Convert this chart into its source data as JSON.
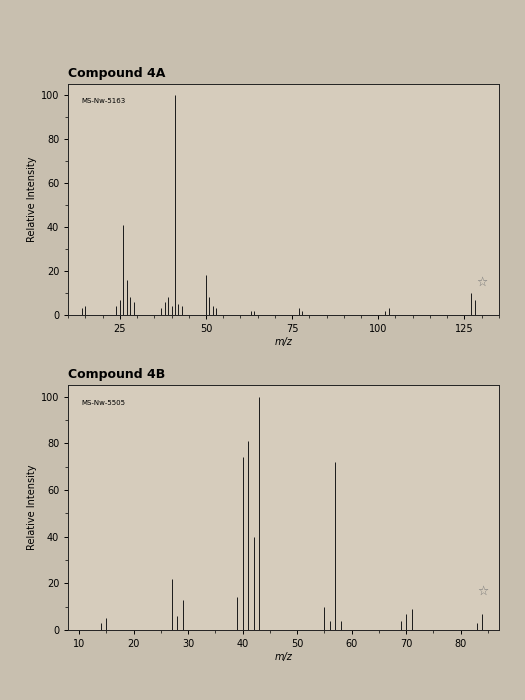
{
  "compound_4A": {
    "label": "MS-Nw-5163",
    "peaks": [
      [
        14,
        3
      ],
      [
        15,
        4
      ],
      [
        24,
        4
      ],
      [
        25,
        7
      ],
      [
        26,
        41
      ],
      [
        27,
        16
      ],
      [
        28,
        8
      ],
      [
        29,
        6
      ],
      [
        37,
        3
      ],
      [
        38,
        6
      ],
      [
        39,
        8
      ],
      [
        40,
        4
      ],
      [
        41,
        100
      ],
      [
        42,
        5
      ],
      [
        43,
        4
      ],
      [
        50,
        18
      ],
      [
        51,
        8
      ],
      [
        52,
        4
      ],
      [
        53,
        3
      ],
      [
        63,
        2
      ],
      [
        64,
        2
      ],
      [
        77,
        3
      ],
      [
        78,
        2
      ],
      [
        102,
        2
      ],
      [
        103,
        3
      ],
      [
        127,
        10
      ],
      [
        128,
        7
      ]
    ],
    "star_mz": 130,
    "star_intensity": 12,
    "xlim": [
      10,
      135
    ],
    "xticks": [
      25,
      50,
      75,
      100,
      125
    ],
    "ylim": [
      0,
      105
    ]
  },
  "compound_4B": {
    "label": "MS-Nw-5505",
    "peaks": [
      [
        14,
        3
      ],
      [
        15,
        5
      ],
      [
        27,
        22
      ],
      [
        28,
        6
      ],
      [
        29,
        13
      ],
      [
        39,
        14
      ],
      [
        40,
        74
      ],
      [
        41,
        81
      ],
      [
        42,
        40
      ],
      [
        43,
        100
      ],
      [
        55,
        10
      ],
      [
        56,
        4
      ],
      [
        57,
        72
      ],
      [
        58,
        4
      ],
      [
        69,
        4
      ],
      [
        70,
        7
      ],
      [
        71,
        9
      ],
      [
        83,
        3
      ],
      [
        84,
        7
      ]
    ],
    "star_mz": 84,
    "star_intensity": 14,
    "xlim": [
      8,
      87
    ],
    "xticks": [
      10,
      20,
      30,
      40,
      50,
      60,
      70,
      80
    ],
    "ylim": [
      0,
      105
    ]
  },
  "title_4A": "Compound 4A",
  "title_4B": "Compound 4B",
  "ylabel": "Relative Intensity",
  "xlabel": "m/z",
  "page_bg": "#c8bfaf",
  "plot_bg": "#d6ccbc",
  "line_color": "#1a1a1a",
  "star_color": "#777777",
  "title_fontsize": 9,
  "label_fontsize": 5,
  "axis_fontsize": 7,
  "tick_fontsize": 7
}
